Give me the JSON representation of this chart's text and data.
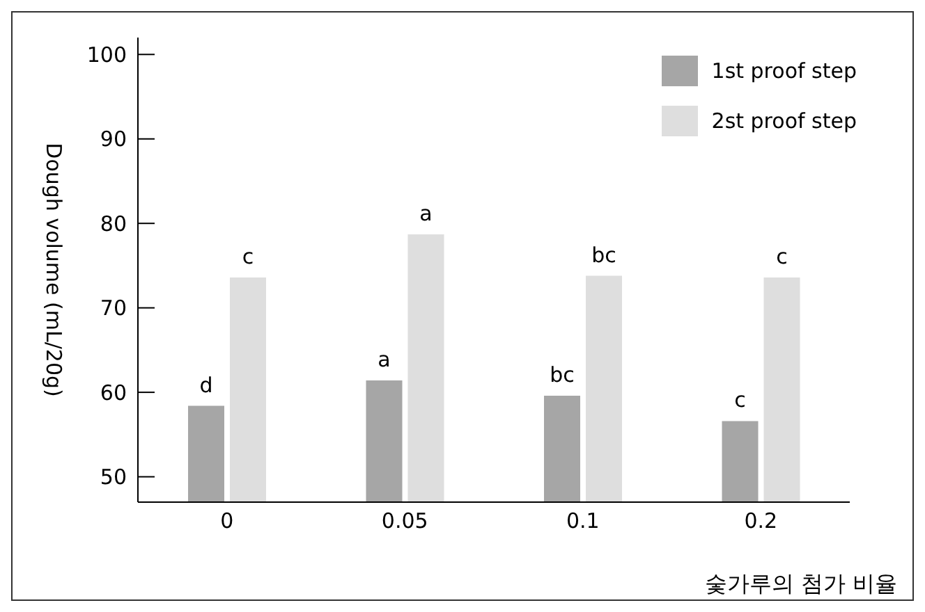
{
  "chart_data": {
    "type": "bar",
    "xlabel": "숯가루의 첨가 비율",
    "ylabel": "Dough volume (mL/20g)",
    "categories": [
      "0",
      "0.05",
      "0.1",
      "0.2"
    ],
    "series": [
      {
        "name": "1st proof step",
        "color": "#a6a6a6",
        "values": [
          58.4,
          61.4,
          59.6,
          56.6
        ],
        "value_labels": [
          "d",
          "a",
          "bc",
          "c"
        ]
      },
      {
        "name": "2st proof step",
        "color": "#dedede",
        "values": [
          73.6,
          78.7,
          73.8,
          73.6
        ],
        "value_labels": [
          "c",
          "a",
          "bc",
          "c"
        ]
      }
    ],
    "ylim": [
      47,
      102
    ],
    "yticks": [
      50,
      60,
      70,
      80,
      90,
      100
    ],
    "legend": "top right"
  }
}
